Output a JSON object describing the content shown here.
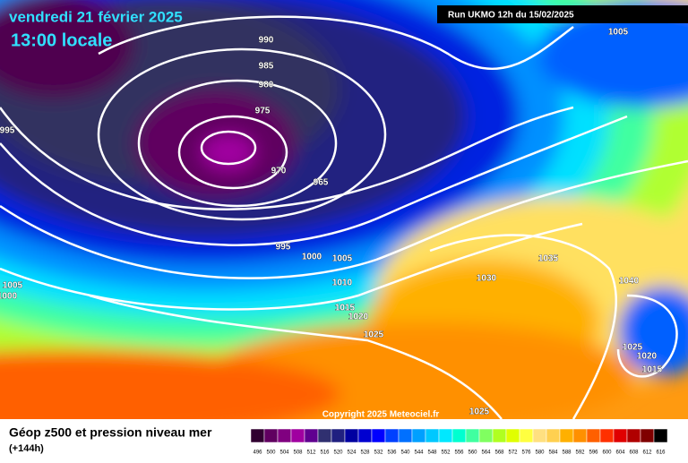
{
  "header": {
    "date": "vendredi 21 février 2025",
    "time": "13:00 locale",
    "run": "Run UKMO 12h du 15/02/2025"
  },
  "isobar_labels": [
    "990",
    "985",
    "980",
    "975",
    "970",
    "965",
    "995",
    "995",
    "1000",
    "1005",
    "1010",
    "1015",
    "1020",
    "1025",
    "1030",
    "1035",
    "1040",
    "1025",
    "1020",
    "1015",
    "1005",
    "1005",
    "1000",
    "1025"
  ],
  "copyright": "Copyright 2025 Meteociel.fr",
  "legend": {
    "title": "Géop z500 et pression niveau mer",
    "lead": "(+144h)",
    "values": [
      496,
      500,
      504,
      508,
      512,
      516,
      520,
      524,
      528,
      532,
      536,
      540,
      544,
      548,
      552,
      556,
      560,
      564,
      568,
      572,
      576,
      580,
      584,
      588,
      592,
      596,
      600,
      604,
      608,
      612,
      616
    ],
    "colors": [
      "#300030",
      "#600060",
      "#800080",
      "#a000a0",
      "#600090",
      "#303070",
      "#202080",
      "#0000a0",
      "#0000d0",
      "#0000ff",
      "#0040ff",
      "#0070ff",
      "#00a0ff",
      "#00c8ff",
      "#00e8ff",
      "#00ffd0",
      "#40ffa0",
      "#80ff60",
      "#b0ff20",
      "#e0ff00",
      "#ffff40",
      "#ffe080",
      "#ffd050",
      "#ffb000",
      "#ff9000",
      "#ff6000",
      "#ff3000",
      "#e00000",
      "#b00000",
      "#800000",
      "#000000"
    ]
  }
}
